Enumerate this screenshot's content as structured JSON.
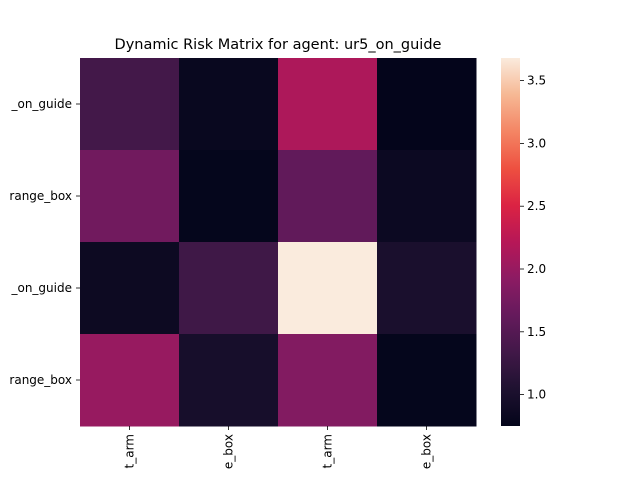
{
  "chart_data": {
    "type": "heatmap",
    "title": "Dynamic Risk Matrix for agent: ur5_on_guide",
    "row_labels": [
      "_on_guide",
      "range_box",
      "_on_guide",
      "range_box"
    ],
    "col_labels": [
      "t_arm",
      "e_box",
      "t_arm",
      "e_box"
    ],
    "values": [
      [
        1.35,
        0.82,
        2.15,
        0.76
      ],
      [
        1.72,
        0.77,
        1.6,
        0.85
      ],
      [
        0.86,
        1.32,
        3.68,
        1.0
      ],
      [
        2.0,
        0.97,
        1.85,
        0.77
      ]
    ],
    "vmin": 0.75,
    "vmax": 3.68,
    "colorbar_ticks": [
      "1.0",
      "1.5",
      "2.0",
      "2.5",
      "3.0",
      "3.5"
    ],
    "colormap": "rocket",
    "grid": false
  }
}
